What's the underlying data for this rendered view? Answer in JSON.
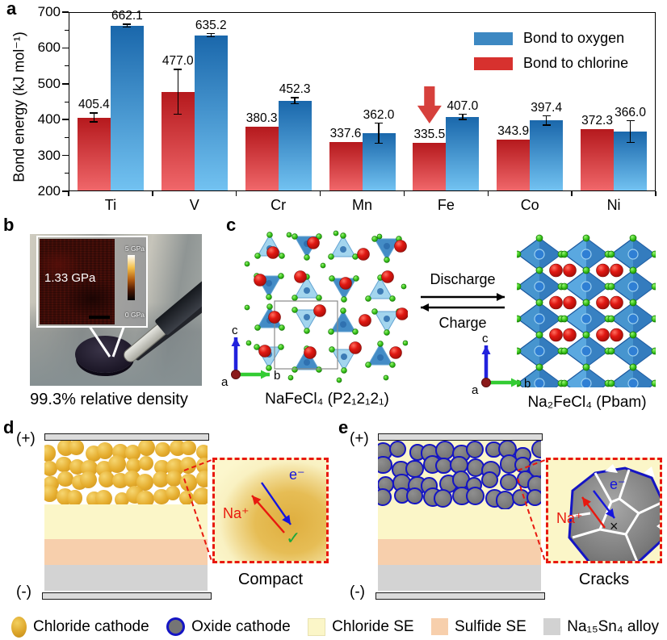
{
  "chart_data": {
    "type": "bar",
    "categories": [
      "Ti",
      "V",
      "Cr",
      "Mn",
      "Fe",
      "Co",
      "Ni"
    ],
    "series": [
      {
        "key": "chlorine",
        "name": "Bond to chlorine",
        "values": [
          405.4,
          477.0,
          380.3,
          337.6,
          335.5,
          343.9,
          372.3
        ],
        "errors": [
          12,
          63,
          0,
          0,
          0,
          0,
          0
        ],
        "color_top": "#b5191d",
        "color_bottom": "#f0676a"
      },
      {
        "key": "oxygen",
        "name": "Bond to oxygen",
        "values": [
          662.1,
          635.2,
          452.3,
          362.0,
          407.0,
          397.4,
          366.0
        ],
        "errors": [
          4,
          4,
          8,
          28,
          7,
          13,
          30
        ],
        "color_top": "#1a67ab",
        "color_bottom": "#72c2f1"
      }
    ],
    "legend": [
      {
        "label": "Bond to oxygen",
        "color": "#3d88c2"
      },
      {
        "label": "Bond to chlorine",
        "color": "#d7312e"
      }
    ],
    "title": "",
    "xlabel": "",
    "ylabel": "Bond energy (kJ mol⁻¹)",
    "ylim": [
      200,
      700
    ],
    "yticks": [
      200,
      300,
      400,
      500,
      600,
      700
    ],
    "grid": false,
    "legend_position": "top-right",
    "annotation": {
      "type": "down-arrow",
      "category": "Fe",
      "series": "chlorine",
      "color": "#d6403c"
    }
  },
  "panel_a": {
    "label": "a"
  },
  "panel_b": {
    "label": "b",
    "inset_value": "1.33 GPa",
    "scale_top": "5 GPa",
    "scale_bottom": "0 GPa",
    "caption": "99.3% relative density"
  },
  "panel_c": {
    "label": "c",
    "left_formula": "NaFeCl₄ (P2₁2₁2₁)",
    "right_formula": "Na₂FeCl₄ (Pbam)",
    "arrow_top": "Discharge",
    "arrow_bottom": "Charge",
    "axes": {
      "up": "c",
      "right": "b",
      "origin": "a"
    }
  },
  "panel_d": {
    "label": "d",
    "positive": "(+)",
    "negative": "(-)",
    "inset": {
      "ion": "Na⁺",
      "electron": "e⁻",
      "mark": "✓",
      "caption": "Compact"
    }
  },
  "panel_e": {
    "label": "e",
    "positive": "(+)",
    "negative": "(-)",
    "inset": {
      "ion": "Na⁺",
      "electron": "e⁻",
      "mark": "×",
      "caption": "Cracks"
    }
  },
  "legend": {
    "items": [
      {
        "name": "chloride-cathode",
        "label": "Chloride cathode",
        "swatch_color": "#dda62a"
      },
      {
        "name": "oxide-cathode",
        "label": "Oxide cathode",
        "swatch_color": "#757575",
        "ring_color": "#1414c4"
      },
      {
        "name": "chloride-se",
        "label": "Chloride SE",
        "swatch_color": "#fbf6c8"
      },
      {
        "name": "sulfide-se",
        "label": "Sulfide SE",
        "swatch_color": "#f7cfac"
      },
      {
        "name": "alloy",
        "label": "Na₁₅Sn₄ alloy",
        "swatch_color": "#d2d2d2"
      }
    ]
  },
  "colors": {
    "accent_red": "#e8190f",
    "ion_label": "#e8190f",
    "electron_label": "#1515dd",
    "check_green": "#1fa83c",
    "oxide_ring_blue": "#1414c4"
  }
}
